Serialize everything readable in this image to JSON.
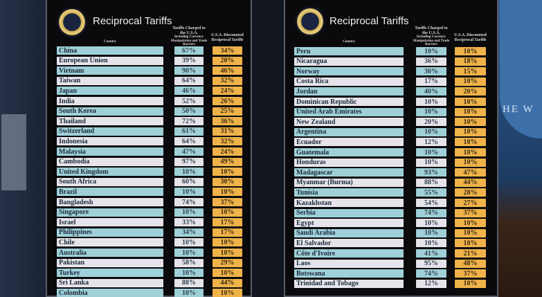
{
  "boards": [
    {
      "title": "Reciprocal Tariffs",
      "col_country": "Country",
      "col_charged": "Tariffs Charged to the U.S.A.",
      "col_charged_sub": "Including Currency Manipulation and Trade Barriers",
      "col_discounted": "U.S.A. Discounted Reciprocal Tariffs",
      "rows": [
        [
          "China",
          "67%",
          "34%"
        ],
        [
          "European Union",
          "39%",
          "20%"
        ],
        [
          "Vietnam",
          "90%",
          "46%"
        ],
        [
          "Taiwan",
          "64%",
          "32%"
        ],
        [
          "Japan",
          "46%",
          "24%"
        ],
        [
          "India",
          "52%",
          "26%"
        ],
        [
          "South Korea",
          "50%",
          "25%"
        ],
        [
          "Thailand",
          "72%",
          "36%"
        ],
        [
          "Switzerland",
          "61%",
          "31%"
        ],
        [
          "Indonesia",
          "64%",
          "32%"
        ],
        [
          "Malaysia",
          "47%",
          "24%"
        ],
        [
          "Cambodia",
          "97%",
          "49%"
        ],
        [
          "United Kingdom",
          "10%",
          "10%"
        ],
        [
          "South Africa",
          "60%",
          "30%"
        ],
        [
          "Brazil",
          "10%",
          "10%"
        ],
        [
          "Bangladesh",
          "74%",
          "37%"
        ],
        [
          "Singapore",
          "10%",
          "10%"
        ],
        [
          "Israel",
          "33%",
          "17%"
        ],
        [
          "Philippines",
          "34%",
          "17%"
        ],
        [
          "Chile",
          "10%",
          "10%"
        ],
        [
          "Australia",
          "10%",
          "10%"
        ],
        [
          "Pakistan",
          "58%",
          "29%"
        ],
        [
          "Turkey",
          "10%",
          "10%"
        ],
        [
          "Sri Lanka",
          "88%",
          "44%"
        ],
        [
          "Colombia",
          "10%",
          "10%"
        ]
      ]
    },
    {
      "title": "Reciprocal Tariffs",
      "col_country": "Country",
      "col_charged": "Tariffs Charged to the U.S.A.",
      "col_charged_sub": "Including Currency Manipulation and Trade Barriers",
      "col_discounted": "U.S.A. Discounted Reciprocal Tariffs",
      "rows": [
        [
          "Peru",
          "10%",
          "10%"
        ],
        [
          "Nicaragua",
          "36%",
          "18%"
        ],
        [
          "Norway",
          "30%",
          "15%"
        ],
        [
          "Costa Rica",
          "17%",
          "10%"
        ],
        [
          "Jordan",
          "40%",
          "20%"
        ],
        [
          "Dominican Republic",
          "10%",
          "10%"
        ],
        [
          "United Arab Emirates",
          "10%",
          "10%"
        ],
        [
          "New Zealand",
          "20%",
          "10%"
        ],
        [
          "Argentina",
          "10%",
          "10%"
        ],
        [
          "Ecuador",
          "12%",
          "10%"
        ],
        [
          "Guatemala",
          "10%",
          "10%"
        ],
        [
          "Honduras",
          "10%",
          "10%"
        ],
        [
          "Madagascar",
          "93%",
          "47%"
        ],
        [
          "Myanmar (Burma)",
          "88%",
          "44%"
        ],
        [
          "Tunisia",
          "55%",
          "28%"
        ],
        [
          "Kazakhstan",
          "54%",
          "27%"
        ],
        [
          "Serbia",
          "74%",
          "37%"
        ],
        [
          "Egypt",
          "10%",
          "10%"
        ],
        [
          "Saudi Arabia",
          "10%",
          "10%"
        ],
        [
          "El Salvador",
          "10%",
          "10%"
        ],
        [
          "Côte d'Ivoire",
          "41%",
          "21%"
        ],
        [
          "Laos",
          "95%",
          "48%"
        ],
        [
          "Botswana",
          "74%",
          "37%"
        ],
        [
          "Trinidad and Tobago",
          "12%",
          "10%"
        ]
      ]
    }
  ],
  "background_text": "HE W",
  "colors": {
    "country_teal": "#9fd0d8",
    "country_white": "#e6e4ea",
    "discount_orange": "#f0b34a",
    "board": "#0a0a0c"
  }
}
